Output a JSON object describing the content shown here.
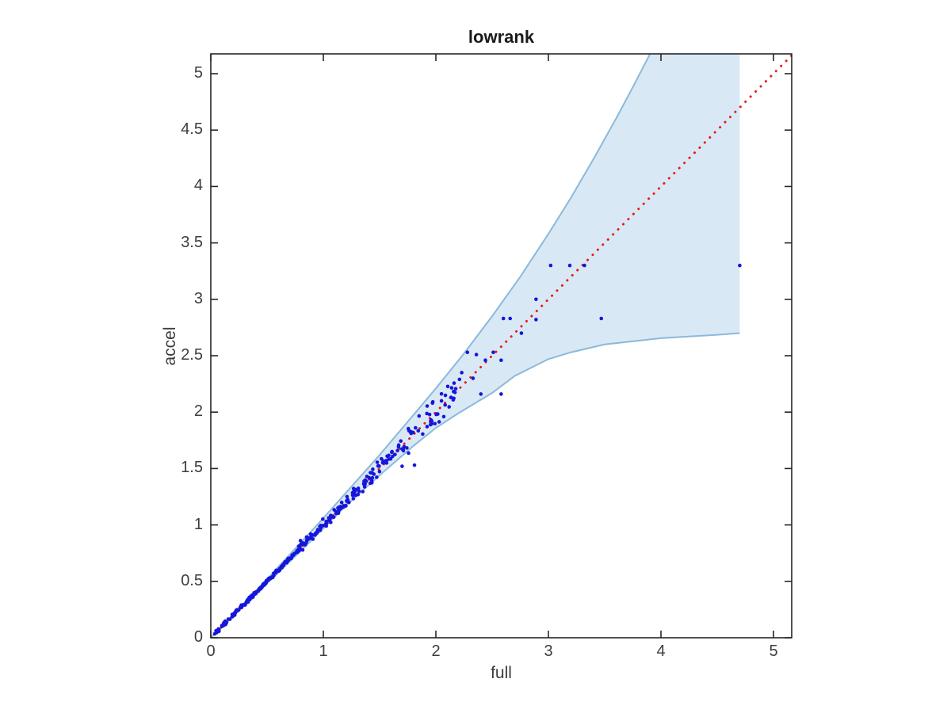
{
  "chart_data": {
    "type": "scatter",
    "title": "lowrank",
    "xlabel": "full",
    "ylabel": "accel",
    "xlim": [
      0,
      5.17
    ],
    "ylim": [
      0,
      5.17
    ],
    "grid": false,
    "legend": "none",
    "x_ticks": [
      "0",
      "1",
      "2",
      "3",
      "4",
      "5"
    ],
    "y_ticks": [
      "0",
      "0.5",
      "1",
      "1.5",
      "2",
      "2.5",
      "3",
      "3.5",
      "4",
      "4.5",
      "5"
    ],
    "axis_color": "#262626",
    "identity_line": {
      "from": [
        0,
        0
      ],
      "to": [
        5.17,
        5.17
      ],
      "style": "dotted",
      "color": "#e81919"
    },
    "band": {
      "fill": "#d9e8f5",
      "edge": "#8bb9da",
      "x_end": 4.7,
      "upper": [
        [
          0,
          0
        ],
        [
          0.5,
          0.52
        ],
        [
          1,
          1.06
        ],
        [
          1.5,
          1.62
        ],
        [
          2,
          2.21
        ],
        [
          2.25,
          2.52
        ],
        [
          2.5,
          2.85
        ],
        [
          2.75,
          3.2
        ],
        [
          3,
          3.58
        ],
        [
          3.2,
          3.9
        ],
        [
          3.41,
          4.26
        ],
        [
          3.6,
          4.6
        ],
        [
          3.75,
          4.88
        ],
        [
          3.9,
          5.17
        ]
      ],
      "lower": [
        [
          0,
          0
        ],
        [
          0.4,
          0.385
        ],
        [
          0.8,
          0.77
        ],
        [
          1.2,
          1.17
        ],
        [
          1.5,
          1.44
        ],
        [
          1.8,
          1.7
        ],
        [
          2,
          1.86
        ],
        [
          2.2,
          1.99
        ],
        [
          2.5,
          2.17
        ],
        [
          2.7,
          2.32
        ],
        [
          3,
          2.47
        ],
        [
          3.2,
          2.53
        ],
        [
          3.5,
          2.6
        ],
        [
          4,
          2.655
        ],
        [
          4.5,
          2.685
        ],
        [
          4.7,
          2.7
        ]
      ]
    },
    "scatter": {
      "color": "#1616dc",
      "marker_px": 2.3,
      "outliers": [
        [
          1.7,
          1.52
        ],
        [
          1.81,
          1.53
        ],
        [
          1.97,
          2.08
        ],
        [
          2.05,
          2.1
        ],
        [
          2.07,
          1.96
        ],
        [
          2.21,
          2.29
        ],
        [
          2.23,
          2.35
        ],
        [
          2.28,
          2.53
        ],
        [
          2.33,
          2.3
        ],
        [
          2.36,
          2.51
        ],
        [
          2.4,
          2.16
        ],
        [
          2.44,
          2.46
        ],
        [
          2.51,
          2.53
        ],
        [
          2.58,
          2.46
        ],
        [
          2.58,
          2.16
        ],
        [
          2.6,
          2.83
        ],
        [
          2.66,
          2.83
        ],
        [
          2.76,
          2.7
        ],
        [
          2.89,
          2.82
        ],
        [
          2.89,
          3.0
        ],
        [
          3.02,
          3.3
        ],
        [
          3.19,
          3.3
        ],
        [
          3.32,
          3.3
        ],
        [
          3.47,
          2.83
        ],
        [
          4.7,
          3.3
        ]
      ],
      "cloud": {
        "description": "dense cluster of points along the y=x diagonal",
        "seed": 42,
        "segments": [
          {
            "n": 160,
            "x": [
              0.02,
              0.78
            ],
            "jitter": 0.016
          },
          {
            "n": 85,
            "x": [
              0.78,
              1.28
            ],
            "jitter": 0.045
          },
          {
            "n": 55,
            "x": [
              1.28,
              1.72
            ],
            "jitter": 0.075
          },
          {
            "n": 40,
            "x": [
              1.72,
              2.18
            ],
            "jitter": 0.13
          }
        ]
      }
    }
  }
}
